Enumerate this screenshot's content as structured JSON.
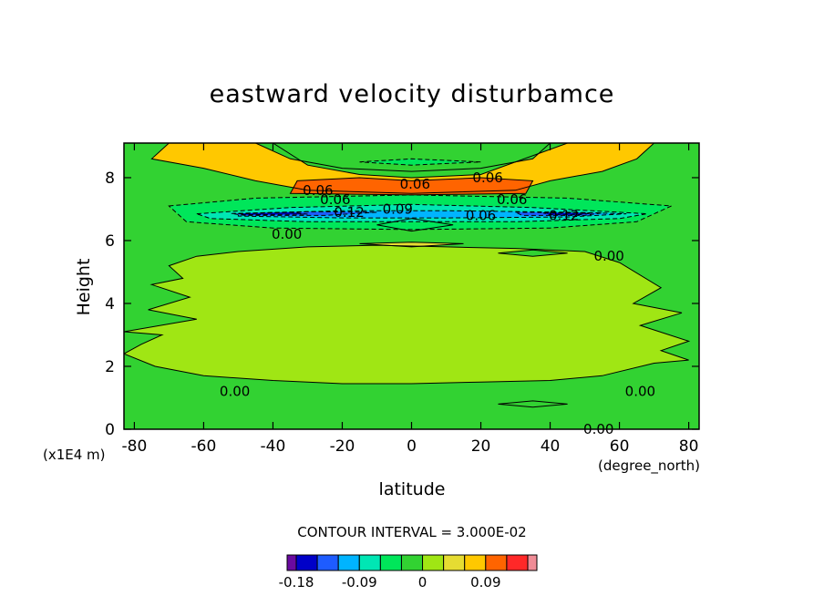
{
  "chart_data": {
    "type": "heatmap",
    "title": "eastward velocity disturbamce",
    "xlabel": "latitude",
    "xunit": "(degree_north)",
    "ylabel": "Height",
    "yunit": "(x1E4 m)",
    "xlim": [
      -83,
      83
    ],
    "ylim": [
      0,
      9.1
    ],
    "xticks": [
      -80,
      -60,
      -40,
      -20,
      0,
      20,
      40,
      60,
      80
    ],
    "xtick_labels": [
      "-80",
      "-60",
      "-40",
      "-20",
      "0",
      "20",
      "40",
      "60",
      "80"
    ],
    "yticks": [
      0,
      2,
      4,
      6,
      8
    ],
    "ytick_labels": [
      "0",
      "2",
      "4",
      "6",
      "8"
    ],
    "contour_interval_text": "CONTOUR INTERVAL = 3.000E-02",
    "contour_labels": [
      {
        "text": "0.06",
        "x": 22,
        "y": 8.0
      },
      {
        "text": "0.06",
        "x": 1,
        "y": 7.8
      },
      {
        "text": "0.06",
        "x": -27,
        "y": 7.6
      },
      {
        "text": "0.06",
        "x": -22,
        "y": 7.3
      },
      {
        "text": "0.06",
        "x": 29,
        "y": 7.3
      },
      {
        "text": "0.12",
        "x": -18,
        "y": 6.9
      },
      {
        "text": "0.09",
        "x": -4,
        "y": 7.0
      },
      {
        "text": "0.06",
        "x": 20,
        "y": 6.8
      },
      {
        "text": "0.12",
        "x": 44,
        "y": 6.8
      },
      {
        "text": "0.00",
        "x": -36,
        "y": 6.2
      },
      {
        "text": "0.00",
        "x": 57,
        "y": 5.5
      },
      {
        "text": "0.00",
        "x": -51,
        "y": 1.2
      },
      {
        "text": "0.00",
        "x": 66,
        "y": 1.2
      },
      {
        "text": "0.00",
        "x": 54,
        "y": 0.0
      }
    ],
    "colorbar": {
      "colors": [
        "#6a0aa0",
        "#0000c8",
        "#1e5cff",
        "#00b4ff",
        "#00e6b4",
        "#00e65a",
        "#32d232",
        "#a0e614",
        "#e6dc32",
        "#ffc800",
        "#ff6400",
        "#ff2828",
        "#f08c96"
      ],
      "tick_labels": [
        "-0.18",
        "-0.09",
        "0",
        "0.09"
      ],
      "tick_levels": [
        -0.18,
        -0.09,
        0,
        0.09
      ],
      "level_min": -0.21,
      "level_step": 0.03
    },
    "regions": [
      {
        "fill": "#32d232",
        "pts": [
          [
            -83,
            0
          ],
          [
            83,
            0
          ],
          [
            83,
            9.1
          ],
          [
            -83,
            9.1
          ]
        ]
      },
      {
        "fill": "#a0e614",
        "pts": [
          [
            -83,
            3.1
          ],
          [
            -72,
            3.0
          ],
          [
            -78,
            2.7
          ],
          [
            -83,
            2.4
          ],
          [
            -74,
            2.0
          ],
          [
            -60,
            1.7
          ],
          [
            -40,
            1.55
          ],
          [
            -20,
            1.45
          ],
          [
            0,
            1.45
          ],
          [
            20,
            1.5
          ],
          [
            40,
            1.55
          ],
          [
            55,
            1.7
          ],
          [
            70,
            2.1
          ],
          [
            80,
            2.2
          ],
          [
            72,
            2.5
          ],
          [
            80,
            2.8
          ],
          [
            66,
            3.3
          ],
          [
            78,
            3.7
          ],
          [
            64,
            4.0
          ],
          [
            72,
            4.5
          ],
          [
            60,
            5.3
          ],
          [
            50,
            5.65
          ],
          [
            30,
            5.75
          ],
          [
            10,
            5.8
          ],
          [
            -10,
            5.85
          ],
          [
            -30,
            5.8
          ],
          [
            -50,
            5.65
          ],
          [
            -62,
            5.5
          ],
          [
            -70,
            5.2
          ],
          [
            -66,
            4.8
          ],
          [
            -75,
            4.6
          ],
          [
            -64,
            4.2
          ],
          [
            -76,
            3.8
          ],
          [
            -62,
            3.5
          ]
        ]
      },
      {
        "fill": "#32d232",
        "pts": [
          [
            -10,
            6.5
          ],
          [
            0,
            6.7
          ],
          [
            12,
            6.5
          ],
          [
            0,
            6.3
          ]
        ]
      },
      {
        "fill": "#e6dc32",
        "pts": [
          [
            -15,
            5.9
          ],
          [
            0,
            5.95
          ],
          [
            15,
            5.9
          ],
          [
            0,
            5.8
          ]
        ]
      },
      {
        "fill": "#32d232",
        "pts": [
          [
            25,
            5.6
          ],
          [
            35,
            5.7
          ],
          [
            45,
            5.6
          ],
          [
            35,
            5.5
          ]
        ]
      },
      {
        "fill": "#32d232",
        "pts": [
          [
            25,
            0.8
          ],
          [
            35,
            0.9
          ],
          [
            45,
            0.8
          ],
          [
            35,
            0.7
          ]
        ]
      },
      {
        "fill": "#ffc800",
        "pts": [
          [
            -70,
            9.1
          ],
          [
            -40,
            9.1
          ],
          [
            -30,
            8.4
          ],
          [
            -15,
            8.1
          ],
          [
            0,
            8.0
          ],
          [
            20,
            8.1
          ],
          [
            45,
            9.1
          ],
          [
            70,
            9.1
          ],
          [
            65,
            8.6
          ],
          [
            55,
            8.2
          ],
          [
            40,
            7.9
          ],
          [
            30,
            7.6
          ],
          [
            0,
            7.5
          ],
          [
            -30,
            7.6
          ],
          [
            -45,
            7.9
          ],
          [
            -60,
            8.3
          ],
          [
            -75,
            8.6
          ]
        ]
      },
      {
        "fill": "#ff6400",
        "pts": [
          [
            -35,
            7.5
          ],
          [
            -33,
            7.9
          ],
          [
            -15,
            8.0
          ],
          [
            0,
            7.9
          ],
          [
            20,
            8.0
          ],
          [
            35,
            7.9
          ],
          [
            33,
            7.5
          ],
          [
            0,
            7.45
          ]
        ]
      },
      {
        "fill": "#32d232",
        "pts": [
          [
            -45,
            9.1
          ],
          [
            40,
            9.1
          ],
          [
            35,
            8.6
          ],
          [
            20,
            8.3
          ],
          [
            0,
            8.2
          ],
          [
            -20,
            8.3
          ],
          [
            -35,
            8.6
          ]
        ]
      },
      {
        "fill": "#00e65a",
        "pts": [
          [
            -15,
            8.5
          ],
          [
            0,
            8.6
          ],
          [
            20,
            8.5
          ],
          [
            0,
            8.4
          ]
        ]
      },
      {
        "fill": "#00e65a",
        "pts": [
          [
            -70,
            7.1
          ],
          [
            -45,
            7.35
          ],
          [
            0,
            7.45
          ],
          [
            45,
            7.35
          ],
          [
            75,
            7.1
          ],
          [
            65,
            6.6
          ],
          [
            40,
            6.4
          ],
          [
            0,
            6.35
          ],
          [
            -40,
            6.4
          ],
          [
            -65,
            6.6
          ]
        ]
      },
      {
        "fill": "#00e6b4",
        "pts": [
          [
            -62,
            6.85
          ],
          [
            -35,
            7.05
          ],
          [
            0,
            7.15
          ],
          [
            35,
            7.05
          ],
          [
            68,
            6.85
          ],
          [
            60,
            6.7
          ],
          [
            30,
            6.6
          ],
          [
            0,
            6.6
          ],
          [
            -30,
            6.6
          ],
          [
            -58,
            6.7
          ]
        ]
      },
      {
        "fill": "#00b4ff",
        "pts": [
          [
            -50,
            6.85
          ],
          [
            -20,
            6.95
          ],
          [
            10,
            6.95
          ],
          [
            45,
            6.9
          ],
          [
            62,
            6.85
          ],
          [
            45,
            6.75
          ],
          [
            10,
            6.72
          ],
          [
            -20,
            6.72
          ],
          [
            -50,
            6.78
          ]
        ]
      },
      {
        "fill": "#1e5cff",
        "pts": [
          [
            -52,
            6.86
          ],
          [
            -30,
            6.92
          ],
          [
            -10,
            6.9
          ],
          [
            -25,
            6.8
          ],
          [
            -48,
            6.8
          ]
        ]
      },
      {
        "fill": "#1e5cff",
        "pts": [
          [
            30,
            6.9
          ],
          [
            55,
            6.88
          ],
          [
            50,
            6.8
          ],
          [
            32,
            6.8
          ]
        ]
      },
      {
        "fill": "#0000c8",
        "pts": [
          [
            -50,
            6.86
          ],
          [
            -35,
            6.9
          ],
          [
            -30,
            6.84
          ],
          [
            -48,
            6.82
          ]
        ]
      },
      {
        "fill": "#0000c8",
        "pts": [
          [
            38,
            6.88
          ],
          [
            52,
            6.87
          ],
          [
            48,
            6.82
          ],
          [
            40,
            6.82
          ]
        ]
      }
    ]
  }
}
